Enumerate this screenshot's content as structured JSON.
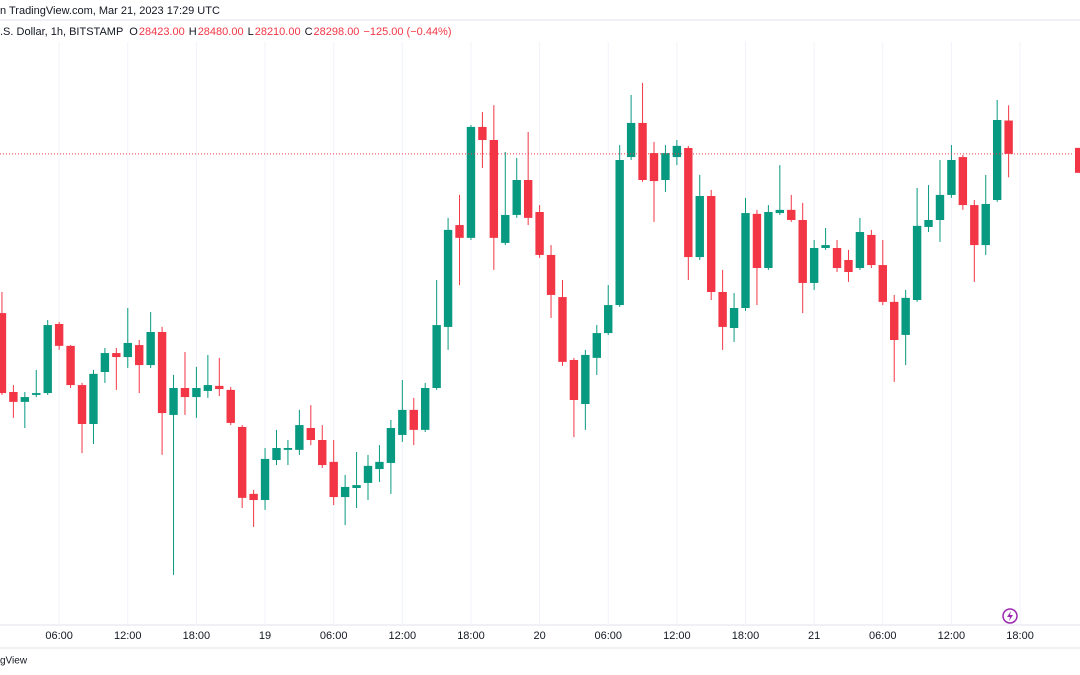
{
  "header": {
    "published": "n TradingView.com, Mar 21, 2023 17:29 UTC",
    "symbol": ".S. Dollar, 1h, BITSTAMP",
    "ohlc": [
      {
        "label": "O",
        "value": "28423.00"
      },
      {
        "label": "H",
        "value": "28480.00"
      },
      {
        "label": "L",
        "value": "28210.00"
      },
      {
        "label": "C",
        "value": "28298.00"
      }
    ],
    "change": "−125.00 (−0.44%)"
  },
  "footer": "gView",
  "chart_data": {
    "type": "candlestick",
    "up_color": "#089981",
    "down_color": "#f23645",
    "grid": true,
    "xlim": [
      -0.17,
      94.24
    ],
    "ylim": [
      26550,
      28800
    ],
    "xticks": [
      {
        "value": 5,
        "label": "06:00"
      },
      {
        "value": 11,
        "label": "12:00"
      },
      {
        "value": 17,
        "label": "18:00"
      },
      {
        "value": 23,
        "label": "19"
      },
      {
        "value": 29,
        "label": "06:00"
      },
      {
        "value": 35,
        "label": "12:00"
      },
      {
        "value": 41,
        "label": "18:00"
      },
      {
        "value": 47,
        "label": "20"
      },
      {
        "value": 53,
        "label": "06:00"
      },
      {
        "value": 59,
        "label": "12:00"
      },
      {
        "value": 65,
        "label": "18:00"
      },
      {
        "value": 71,
        "label": "21"
      },
      {
        "value": 77,
        "label": "06:00"
      },
      {
        "value": 83,
        "label": "12:00"
      },
      {
        "value": 89,
        "label": "18:00"
      }
    ],
    "open": [
      27701,
      27405,
      27368,
      27394,
      27401,
      27660,
      27578,
      27431,
      27285,
      27480,
      27551,
      27536,
      27581,
      27506,
      27630,
      27319,
      27420,
      27386,
      27409,
      27428,
      27413,
      27274,
      27023,
      27000,
      27150,
      27188,
      27188,
      27270,
      27225,
      27143,
      27011,
      27045,
      27064,
      27116,
      27139,
      27244,
      27338,
      27263,
      27420,
      27649,
      28031,
      27983,
      28399,
      28350,
      27964,
      28069,
      28200,
      28080,
      27919,
      27761,
      27525,
      27360,
      27533,
      27626,
      27731,
      28286,
      28414,
      28301,
      28200,
      28286,
      28320,
      27911,
      28140,
      27780,
      27645,
      27720,
      28073,
      27870,
      28076,
      28088,
      28050,
      27814,
      27945,
      27945,
      27900,
      27870,
      27994,
      27881,
      27743,
      27619,
      27750,
      28024,
      28050,
      28144,
      28286,
      28106,
      27956,
      28125,
      28423
    ],
    "high": [
      27780,
      27431,
      27405,
      27488,
      27675,
      27668,
      27581,
      27439,
      27488,
      27570,
      27570,
      27720,
      27600,
      27705,
      27649,
      27469,
      27555,
      27499,
      27544,
      27533,
      27424,
      27281,
      27038,
      27195,
      27263,
      27225,
      27338,
      27356,
      27281,
      27225,
      27094,
      27180,
      27169,
      27206,
      27300,
      27450,
      27383,
      27439,
      27825,
      28058,
      28144,
      28406,
      28455,
      28481,
      28305,
      28283,
      28380,
      28106,
      27956,
      27825,
      27533,
      27563,
      27656,
      27806,
      28331,
      28519,
      28564,
      28343,
      28331,
      28350,
      28328,
      28219,
      28163,
      27863,
      27776,
      28133,
      28088,
      28106,
      28256,
      28144,
      28114,
      27975,
      28020,
      27975,
      27938,
      28058,
      28013,
      27975,
      27769,
      27788,
      28170,
      28181,
      28275,
      28331,
      28294,
      28125,
      28219,
      28500,
      28480
    ],
    "low": [
      27394,
      27308,
      27270,
      27386,
      27394,
      27563,
      27420,
      27176,
      27210,
      27439,
      27413,
      27495,
      27401,
      27495,
      27169,
      26719,
      27319,
      27308,
      27383,
      27390,
      27281,
      26970,
      26899,
      26963,
      27131,
      27131,
      27169,
      27206,
      27120,
      26981,
      26906,
      26970,
      27000,
      27068,
      27023,
      27218,
      27206,
      27255,
      27413,
      27563,
      27806,
      27975,
      28245,
      27863,
      27956,
      28058,
      28031,
      27908,
      27683,
      27503,
      27236,
      27263,
      27469,
      27619,
      27724,
      28275,
      28193,
      28043,
      28155,
      28256,
      27825,
      27900,
      27750,
      27563,
      27593,
      27709,
      27731,
      27863,
      28069,
      28043,
      27701,
      27788,
      27938,
      27855,
      27818,
      27863,
      27870,
      27731,
      27443,
      27506,
      27743,
      28005,
      27968,
      28133,
      28088,
      27818,
      27919,
      28118,
      28210
    ],
    "close": [
      27401,
      27368,
      27386,
      27401,
      27656,
      27578,
      27431,
      27285,
      27473,
      27551,
      27536,
      27589,
      27506,
      27630,
      27326,
      27420,
      27386,
      27420,
      27431,
      27416,
      27289,
      27008,
      27000,
      27154,
      27195,
      27195,
      27281,
      27225,
      27131,
      27011,
      27049,
      27056,
      27128,
      27143,
      27270,
      27338,
      27263,
      27420,
      27656,
      28013,
      27983,
      28399,
      28350,
      27983,
      28069,
      28200,
      28058,
      27919,
      27769,
      27518,
      27375,
      27544,
      27626,
      27731,
      28275,
      28414,
      28200,
      28196,
      28301,
      28328,
      27911,
      28140,
      27780,
      27649,
      27720,
      28076,
      27870,
      28080,
      28088,
      28050,
      27814,
      27945,
      27956,
      27870,
      27855,
      28005,
      27881,
      27743,
      27600,
      27758,
      28028,
      28050,
      28144,
      28275,
      28106,
      27956,
      28110,
      28425,
      28298
    ]
  }
}
